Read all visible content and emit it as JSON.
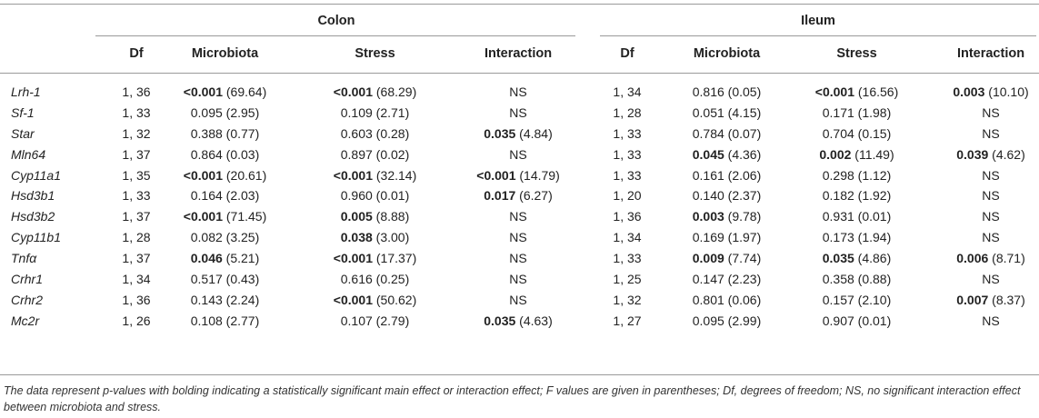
{
  "table": {
    "groups": [
      {
        "label": "Colon"
      },
      {
        "label": "Ileum"
      }
    ],
    "columns": [
      "Df",
      "Microbiota",
      "Stress",
      "Interaction",
      "Df",
      "Microbiota",
      "Stress",
      "Interaction"
    ],
    "rows": [
      {
        "gene": "Lrh-1",
        "cells": [
          {
            "b": "",
            "t": "1, 36"
          },
          {
            "b": "<0.001",
            "t": " (69.64)"
          },
          {
            "b": "<0.001",
            "t": " (68.29)"
          },
          {
            "b": "",
            "t": "NS"
          },
          {
            "b": "",
            "t": "1, 34"
          },
          {
            "b": "",
            "t": "0.816 (0.05)"
          },
          {
            "b": "<0.001",
            "t": " (16.56)"
          },
          {
            "b": "0.003",
            "t": " (10.10)"
          }
        ]
      },
      {
        "gene": "Sf-1",
        "cells": [
          {
            "b": "",
            "t": "1, 33"
          },
          {
            "b": "",
            "t": "0.095 (2.95)"
          },
          {
            "b": "",
            "t": "0.109 (2.71)"
          },
          {
            "b": "",
            "t": "NS"
          },
          {
            "b": "",
            "t": "1, 28"
          },
          {
            "b": "",
            "t": "0.051 (4.15)"
          },
          {
            "b": "",
            "t": "0.171 (1.98)"
          },
          {
            "b": "",
            "t": "NS"
          }
        ]
      },
      {
        "gene": "Star",
        "cells": [
          {
            "b": "",
            "t": "1, 32"
          },
          {
            "b": "",
            "t": "0.388 (0.77)"
          },
          {
            "b": "",
            "t": "0.603 (0.28)"
          },
          {
            "b": "0.035",
            "t": " (4.84)"
          },
          {
            "b": "",
            "t": "1, 33"
          },
          {
            "b": "",
            "t": "0.784 (0.07)"
          },
          {
            "b": "",
            "t": "0.704 (0.15)"
          },
          {
            "b": "",
            "t": "NS"
          }
        ]
      },
      {
        "gene": "Mln64",
        "cells": [
          {
            "b": "",
            "t": "1, 37"
          },
          {
            "b": "",
            "t": "0.864 (0.03)"
          },
          {
            "b": "",
            "t": "0.897 (0.02)"
          },
          {
            "b": "",
            "t": "NS"
          },
          {
            "b": "",
            "t": "1, 33"
          },
          {
            "b": "0.045",
            "t": " (4.36)"
          },
          {
            "b": "0.002",
            "t": " (11.49)"
          },
          {
            "b": "0.039",
            "t": " (4.62)"
          }
        ]
      },
      {
        "gene": "Cyp11a1",
        "cells": [
          {
            "b": "",
            "t": "1, 35"
          },
          {
            "b": "<0.001",
            "t": " (20.61)"
          },
          {
            "b": "<0.001",
            "t": " (32.14)"
          },
          {
            "b": "<0.001",
            "t": " (14.79)"
          },
          {
            "b": "",
            "t": "1, 33"
          },
          {
            "b": "",
            "t": "0.161 (2.06)"
          },
          {
            "b": "",
            "t": "0.298 (1.12)"
          },
          {
            "b": "",
            "t": "NS"
          }
        ]
      },
      {
        "gene": "Hsd3b1",
        "cells": [
          {
            "b": "",
            "t": "1, 33"
          },
          {
            "b": "",
            "t": "0.164 (2.03)"
          },
          {
            "b": "",
            "t": "0.960 (0.01)"
          },
          {
            "b": "0.017",
            "t": " (6.27)"
          },
          {
            "b": "",
            "t": "1, 20"
          },
          {
            "b": "",
            "t": "0.140 (2.37)"
          },
          {
            "b": "",
            "t": "0.182 (1.92)"
          },
          {
            "b": "",
            "t": "NS"
          }
        ]
      },
      {
        "gene": "Hsd3b2",
        "cells": [
          {
            "b": "",
            "t": "1, 37"
          },
          {
            "b": "<0.001",
            "t": " (71.45)"
          },
          {
            "b": "0.005",
            "t": " (8.88)"
          },
          {
            "b": "",
            "t": "NS"
          },
          {
            "b": "",
            "t": "1, 36"
          },
          {
            "b": "0.003",
            "t": " (9.78)"
          },
          {
            "b": "",
            "t": "0.931 (0.01)"
          },
          {
            "b": "",
            "t": "NS"
          }
        ]
      },
      {
        "gene": "Cyp11b1",
        "cells": [
          {
            "b": "",
            "t": "1, 28"
          },
          {
            "b": "",
            "t": "0.082 (3.25)"
          },
          {
            "b": "0.038",
            "t": " (3.00)"
          },
          {
            "b": "",
            "t": "NS"
          },
          {
            "b": "",
            "t": "1, 34"
          },
          {
            "b": "",
            "t": "0.169 (1.97)"
          },
          {
            "b": "",
            "t": "0.173 (1.94)"
          },
          {
            "b": "",
            "t": "NS"
          }
        ]
      },
      {
        "gene": "Tnfα",
        "cells": [
          {
            "b": "",
            "t": "1, 37"
          },
          {
            "b": "0.046",
            "t": " (5.21)"
          },
          {
            "b": "<0.001",
            "t": " (17.37)"
          },
          {
            "b": "",
            "t": "NS"
          },
          {
            "b": "",
            "t": "1, 33"
          },
          {
            "b": "0.009",
            "t": " (7.74)"
          },
          {
            "b": "0.035",
            "t": " (4.86)"
          },
          {
            "b": "0.006",
            "t": " (8.71)"
          }
        ]
      },
      {
        "gene": "Crhr1",
        "cells": [
          {
            "b": "",
            "t": "1, 34"
          },
          {
            "b": "",
            "t": "0.517 (0.43)"
          },
          {
            "b": "",
            "t": "0.616 (0.25)"
          },
          {
            "b": "",
            "t": "NS"
          },
          {
            "b": "",
            "t": "1, 25"
          },
          {
            "b": "",
            "t": "0.147 (2.23)"
          },
          {
            "b": "",
            "t": "0.358 (0.88)"
          },
          {
            "b": "",
            "t": "NS"
          }
        ]
      },
      {
        "gene": "Crhr2",
        "cells": [
          {
            "b": "",
            "t": "1, 36"
          },
          {
            "b": "",
            "t": "0.143 (2.24)"
          },
          {
            "b": "<0.001",
            "t": " (50.62)"
          },
          {
            "b": "",
            "t": "NS"
          },
          {
            "b": "",
            "t": "1, 32"
          },
          {
            "b": "",
            "t": "0.801 (0.06)"
          },
          {
            "b": "",
            "t": "0.157 (2.10)"
          },
          {
            "b": "0.007",
            "t": " (8.37)"
          }
        ]
      },
      {
        "gene": "Mc2r",
        "cells": [
          {
            "b": "",
            "t": "1, 26"
          },
          {
            "b": "",
            "t": "0.108 (2.77)"
          },
          {
            "b": "",
            "t": "0.107 (2.79)"
          },
          {
            "b": "0.035",
            "t": " (4.63)"
          },
          {
            "b": "",
            "t": "1, 27"
          },
          {
            "b": "",
            "t": "0.095 (2.99)"
          },
          {
            "b": "",
            "t": "0.907 (0.01)"
          },
          {
            "b": "",
            "t": "NS"
          }
        ]
      }
    ],
    "footnote": "The data represent p-values with bolding indicating a statistically significant main effect or interaction effect; F values are given in parentheses; Df, degrees of freedom; NS, no significant interaction effect between microbiota and stress."
  }
}
